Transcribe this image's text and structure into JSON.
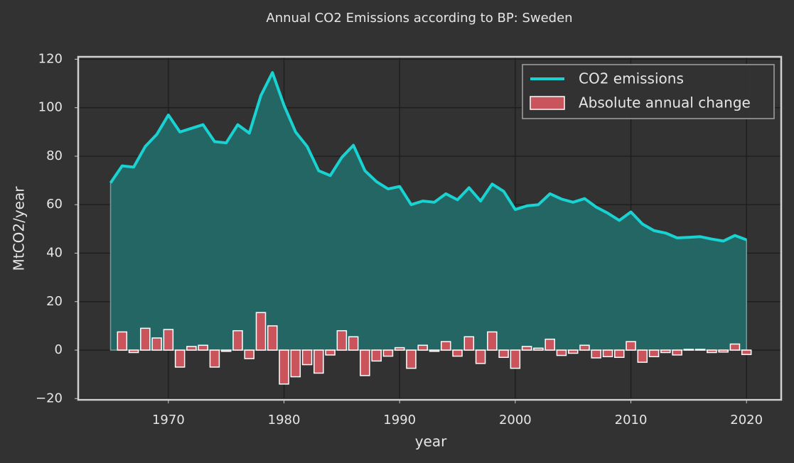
{
  "chart_data": {
    "type": "line",
    "title": "Annual CO2 Emissions according to BP: Sweden",
    "xlabel": "year",
    "ylabel": "MtCO2/year",
    "x": [
      1965,
      1966,
      1967,
      1968,
      1969,
      1970,
      1971,
      1972,
      1973,
      1974,
      1975,
      1976,
      1977,
      1978,
      1979,
      1980,
      1981,
      1982,
      1983,
      1984,
      1985,
      1986,
      1987,
      1988,
      1989,
      1990,
      1991,
      1992,
      1993,
      1994,
      1995,
      1996,
      1997,
      1998,
      1999,
      2000,
      2001,
      2002,
      2003,
      2004,
      2005,
      2006,
      2007,
      2008,
      2009,
      2010,
      2011,
      2012,
      2013,
      2014,
      2015,
      2016,
      2017,
      2018,
      2019,
      2020
    ],
    "series": [
      {
        "name": "CO2 emissions",
        "color": "#19d2d2",
        "fill": "#236664",
        "values": [
          69,
          76,
          75.5,
          84,
          89,
          97,
          90,
          91.5,
          93,
          86,
          85.5,
          93,
          89.5,
          105,
          114.5,
          101,
          90,
          84,
          74,
          72,
          79.5,
          84.5,
          74,
          69.5,
          66.5,
          67.5,
          60,
          61.5,
          61,
          64.5,
          62,
          67,
          61.5,
          68.5,
          65.5,
          58,
          59.5,
          60,
          64.5,
          62.3,
          61,
          62.5,
          59,
          56.5,
          53.5,
          57,
          52,
          49.3,
          48.3,
          46.3,
          46.5,
          46.8,
          45.8,
          45,
          47.3,
          45.5
        ]
      },
      {
        "name": "Absolute annual change",
        "color": "#c9545b",
        "type": "bar",
        "values": [
          null,
          7.5,
          -1,
          9,
          5,
          8.5,
          -7,
          1.5,
          2,
          -7,
          -0.5,
          8,
          -3.5,
          15.5,
          10,
          -14,
          -11,
          -6,
          -9.5,
          -2,
          8,
          5.5,
          -10.5,
          -4.5,
          -2.5,
          1,
          -7.5,
          2,
          -0.5,
          3.5,
          -2.5,
          5.5,
          -5.5,
          7.5,
          -3,
          -7.5,
          1.5,
          0.8,
          4.5,
          -2.2,
          -1.3,
          2,
          -3.2,
          -2.7,
          -3,
          3.5,
          -5,
          -2.7,
          -1,
          -2,
          0.3,
          0.3,
          -1,
          -0.8,
          2.5,
          -1.8
        ]
      }
    ],
    "xlim": [
      1962.2,
      2023
    ],
    "ylim": [
      -20.5,
      121
    ],
    "xticks": [
      1970,
      1980,
      1990,
      2000,
      2010,
      2020
    ],
    "yticks": [
      {
        "value": -20,
        "label": "−20"
      },
      0,
      20,
      40,
      60,
      80,
      100,
      120
    ],
    "grid": true,
    "legend": "upper right"
  }
}
